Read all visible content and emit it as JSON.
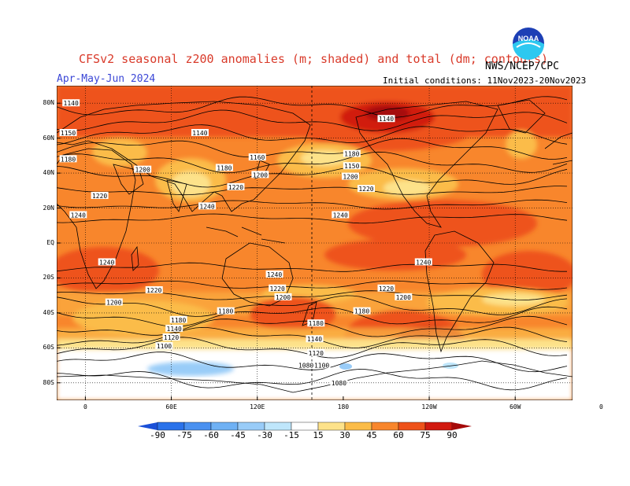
{
  "header": {
    "title": "CFSv2 seasonal z200 anomalies (m; shaded) and total (dm; contours)",
    "season": "Apr-May-Jun 2024",
    "initial_conditions": "Initial conditions: 11Nov2023-20Nov2023",
    "agency": "NWS/NCEP/CPC",
    "logo_text": "NOAA"
  },
  "map": {
    "lat_labels": [
      "80N",
      "60N",
      "40N",
      "20N",
      "EQ",
      "20S",
      "40S",
      "60S",
      "80S"
    ],
    "lon_labels": [
      "0",
      "60E",
      "120E",
      "180",
      "120W",
      "60W",
      "0"
    ],
    "contour_labels": [
      {
        "text": "1140",
        "lat": 80,
        "lon": -10
      },
      {
        "text": "1140",
        "lat": 63,
        "lon": 80
      },
      {
        "text": "1140",
        "lat": 71,
        "lon": -150
      },
      {
        "text": "1150",
        "lat": 63,
        "lon": -12
      },
      {
        "text": "1180",
        "lat": 48,
        "lon": -12
      },
      {
        "text": "1200",
        "lat": 42,
        "lon": 40
      },
      {
        "text": "1180",
        "lat": 43,
        "lon": 97
      },
      {
        "text": "1160",
        "lat": 49,
        "lon": 120
      },
      {
        "text": "1200",
        "lat": 39,
        "lon": 122
      },
      {
        "text": "1220",
        "lat": 32,
        "lon": 105
      },
      {
        "text": "1180",
        "lat": 51,
        "lon": -174
      },
      {
        "text": "1150",
        "lat": 44,
        "lon": -174
      },
      {
        "text": "1200",
        "lat": 38,
        "lon": -175
      },
      {
        "text": "1220",
        "lat": 31,
        "lon": -164
      },
      {
        "text": "1220",
        "lat": 27,
        "lon": 10
      },
      {
        "text": "1240",
        "lat": 16,
        "lon": -5
      },
      {
        "text": "1240",
        "lat": 21,
        "lon": 85
      },
      {
        "text": "1240",
        "lat": 16,
        "lon": -182
      },
      {
        "text": "1240",
        "lat": -11,
        "lon": 15
      },
      {
        "text": "1240",
        "lat": -18,
        "lon": 132
      },
      {
        "text": "1240",
        "lat": -11,
        "lon": -124
      },
      {
        "text": "1220",
        "lat": -27,
        "lon": 48
      },
      {
        "text": "1220",
        "lat": -26,
        "lon": 134
      },
      {
        "text": "1220",
        "lat": -26,
        "lon": -150
      },
      {
        "text": "1200",
        "lat": -31,
        "lon": -138
      },
      {
        "text": "1200",
        "lat": -31,
        "lon": 138
      },
      {
        "text": "1200",
        "lat": -34,
        "lon": 20
      },
      {
        "text": "1180",
        "lat": -39,
        "lon": 98
      },
      {
        "text": "1180",
        "lat": -39,
        "lon": -167
      },
      {
        "text": "1180",
        "lat": -44,
        "lon": 65
      },
      {
        "text": "1180",
        "lat": -46,
        "lon": -199
      },
      {
        "text": "1140",
        "lat": -49,
        "lon": 62
      },
      {
        "text": "1140",
        "lat": -55,
        "lon": -200
      },
      {
        "text": "1120",
        "lat": -54,
        "lon": 60
      },
      {
        "text": "1120",
        "lat": -63,
        "lon": -199
      },
      {
        "text": "1100",
        "lat": -59,
        "lon": 55
      },
      {
        "text": "1100",
        "lat": -70,
        "lon": -195
      },
      {
        "text": "1080",
        "lat": -70,
        "lon": 154
      },
      {
        "text": "1080",
        "lat": -80,
        "lon": -183
      }
    ]
  },
  "colorbar": {
    "labels": [
      "-90",
      "-75",
      "-60",
      "-45",
      "-30",
      "-15",
      "15",
      "30",
      "45",
      "60",
      "75",
      "90"
    ],
    "colors": [
      "#1a50d8",
      "#2a72ea",
      "#4a91f0",
      "#6fb1f4",
      "#99ccf8",
      "#bfe6fb",
      "#ffffff",
      "#fde28a",
      "#fbbc48",
      "#f8862c",
      "#ee521a",
      "#d11a10",
      "#a50a0a"
    ]
  }
}
